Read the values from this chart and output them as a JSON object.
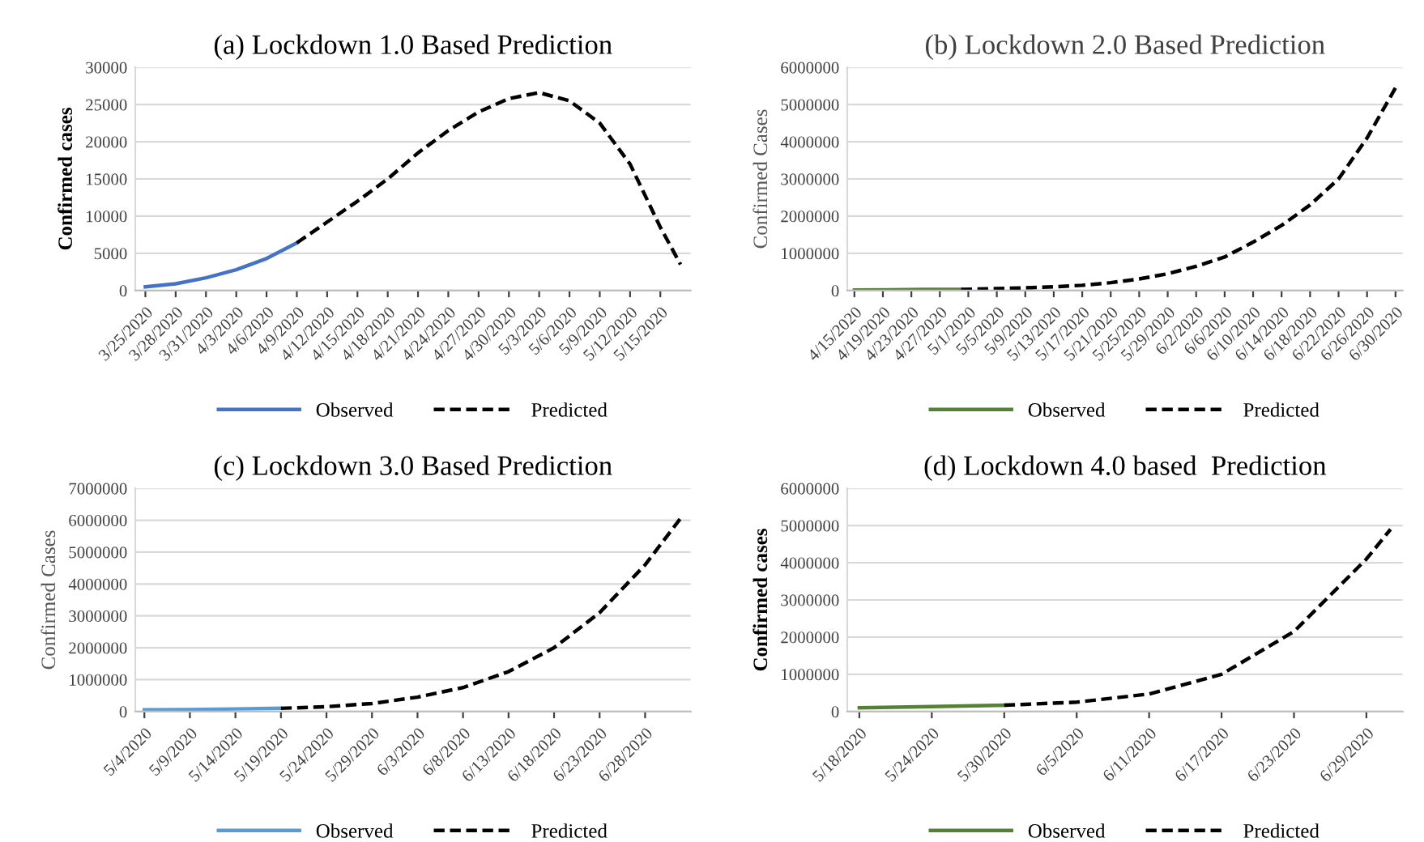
{
  "chart_data": [
    {
      "type": "line",
      "title": "(a) Lockdown 1.0 Based Prediction",
      "ylabel": "Confirmed cases",
      "grid": "y",
      "legend": "bottom",
      "xlim": [
        "2020-03-24",
        "2020-05-18"
      ],
      "ylim": [
        0,
        30000
      ],
      "yticks": [
        0,
        5000,
        10000,
        15000,
        20000,
        25000,
        30000
      ],
      "xticks": [
        {
          "value": "2020-03-25",
          "label": "3/25/2020"
        },
        {
          "value": "2020-03-28",
          "label": "3/28/2020"
        },
        {
          "value": "2020-03-31",
          "label": "3/31/2020"
        },
        {
          "value": "2020-04-03",
          "label": "4/3/2020"
        },
        {
          "value": "2020-04-06",
          "label": "4/6/2020"
        },
        {
          "value": "2020-04-09",
          "label": "4/9/2020"
        },
        {
          "value": "2020-04-12",
          "label": "4/12/2020"
        },
        {
          "value": "2020-04-15",
          "label": "4/15/2020"
        },
        {
          "value": "2020-04-18",
          "label": "4/18/2020"
        },
        {
          "value": "2020-04-21",
          "label": "4/21/2020"
        },
        {
          "value": "2020-04-24",
          "label": "4/24/2020"
        },
        {
          "value": "2020-04-27",
          "label": "4/27/2020"
        },
        {
          "value": "2020-04-30",
          "label": "4/30/2020"
        },
        {
          "value": "2020-05-03",
          "label": "5/3/2020"
        },
        {
          "value": "2020-05-06",
          "label": "5/6/2020"
        },
        {
          "value": "2020-05-09",
          "label": "5/9/2020"
        },
        {
          "value": "2020-05-12",
          "label": "5/12/2020"
        },
        {
          "value": "2020-05-15",
          "label": "5/15/2020"
        }
      ],
      "series": [
        {
          "name": "Observed",
          "color": "#4472c4",
          "line_style": "solid",
          "x": [
            "2020-03-25",
            "2020-03-28",
            "2020-03-31",
            "2020-04-03",
            "2020-04-06",
            "2020-04-09"
          ],
          "values": [
            500,
            900,
            1700,
            2800,
            4300,
            6400
          ]
        },
        {
          "name": "Predicted",
          "color": "#000000",
          "line_style": "dashed",
          "x": [
            "2020-04-09",
            "2020-04-12",
            "2020-04-15",
            "2020-04-18",
            "2020-04-21",
            "2020-04-24",
            "2020-04-27",
            "2020-04-30",
            "2020-05-03",
            "2020-05-06",
            "2020-05-09",
            "2020-05-12",
            "2020-05-15",
            "2020-05-17"
          ],
          "values": [
            6400,
            9200,
            12000,
            15000,
            18500,
            21500,
            24000,
            25800,
            26600,
            25500,
            22500,
            17000,
            8500,
            3500
          ]
        }
      ]
    },
    {
      "type": "line",
      "title": "(b) Lockdown 2.0 Based Prediction",
      "ylabel": "Confirmed Cases",
      "grid": "y",
      "legend": "bottom",
      "xlim": [
        "2020-04-14",
        "2020-07-01"
      ],
      "ylim": [
        0,
        6000000
      ],
      "yticks": [
        0,
        1000000,
        2000000,
        3000000,
        4000000,
        5000000,
        6000000
      ],
      "xticks": [
        {
          "value": "2020-04-15",
          "label": "4/15/2020"
        },
        {
          "value": "2020-04-19",
          "label": "4/19/2020"
        },
        {
          "value": "2020-04-23",
          "label": "4/23/2020"
        },
        {
          "value": "2020-04-27",
          "label": "4/27/2020"
        },
        {
          "value": "2020-05-01",
          "label": "5/1/2020"
        },
        {
          "value": "2020-05-05",
          "label": "5/5/2020"
        },
        {
          "value": "2020-05-09",
          "label": "5/9/2020"
        },
        {
          "value": "2020-05-13",
          "label": "5/13/2020"
        },
        {
          "value": "2020-05-17",
          "label": "5/17/2020"
        },
        {
          "value": "2020-05-21",
          "label": "5/21/2020"
        },
        {
          "value": "2020-05-25",
          "label": "5/25/2020"
        },
        {
          "value": "2020-05-29",
          "label": "5/29/2020"
        },
        {
          "value": "2020-06-02",
          "label": "6/2/2020"
        },
        {
          "value": "2020-06-06",
          "label": "6/6/2020"
        },
        {
          "value": "2020-06-10",
          "label": "6/10/2020"
        },
        {
          "value": "2020-06-14",
          "label": "6/14/2020"
        },
        {
          "value": "2020-06-18",
          "label": "6/18/2020"
        },
        {
          "value": "2020-06-22",
          "label": "6/22/2020"
        },
        {
          "value": "2020-06-26",
          "label": "6/26/2020"
        },
        {
          "value": "2020-06-30",
          "label": "6/30/2020"
        }
      ],
      "series": [
        {
          "name": "Observed",
          "color": "#548235",
          "line_style": "solid",
          "x": [
            "2020-04-15",
            "2020-04-20",
            "2020-04-25",
            "2020-04-30"
          ],
          "values": [
            10000,
            20000,
            30000,
            30000
          ]
        },
        {
          "name": "Predicted",
          "color": "#000000",
          "line_style": "dashed",
          "x": [
            "2020-04-30",
            "2020-05-05",
            "2020-05-09",
            "2020-05-13",
            "2020-05-17",
            "2020-05-21",
            "2020-05-25",
            "2020-05-29",
            "2020-06-02",
            "2020-06-06",
            "2020-06-10",
            "2020-06-14",
            "2020-06-18",
            "2020-06-22",
            "2020-06-26",
            "2020-06-30"
          ],
          "values": [
            30000,
            50000,
            70000,
            100000,
            140000,
            210000,
            310000,
            450000,
            650000,
            900000,
            1300000,
            1750000,
            2300000,
            3000000,
            4100000,
            5450000
          ]
        }
      ]
    },
    {
      "type": "line",
      "title": "(c) Lockdown 3.0 Based Prediction",
      "ylabel": "Confirmed Cases",
      "grid": "y",
      "legend": "bottom",
      "xlim": [
        "2020-05-03",
        "2020-07-03"
      ],
      "ylim": [
        0,
        7000000
      ],
      "yticks": [
        0,
        1000000,
        2000000,
        3000000,
        4000000,
        5000000,
        6000000,
        7000000
      ],
      "xticks": [
        {
          "value": "2020-05-04",
          "label": "5/4/2020"
        },
        {
          "value": "2020-05-09",
          "label": "5/9/2020"
        },
        {
          "value": "2020-05-14",
          "label": "5/14/2020"
        },
        {
          "value": "2020-05-19",
          "label": "5/19/2020"
        },
        {
          "value": "2020-05-24",
          "label": "5/24/2020"
        },
        {
          "value": "2020-05-29",
          "label": "5/29/2020"
        },
        {
          "value": "2020-06-03",
          "label": "6/3/2020"
        },
        {
          "value": "2020-06-08",
          "label": "6/8/2020"
        },
        {
          "value": "2020-06-13",
          "label": "6/13/2020"
        },
        {
          "value": "2020-06-18",
          "label": "6/18/2020"
        },
        {
          "value": "2020-06-23",
          "label": "6/23/2020"
        },
        {
          "value": "2020-06-28",
          "label": "6/28/2020"
        }
      ],
      "series": [
        {
          "name": "Observed",
          "color": "#5b9bd5",
          "line_style": "solid",
          "x": [
            "2020-05-04",
            "2020-05-09",
            "2020-05-14",
            "2020-05-19"
          ],
          "values": [
            50000,
            60000,
            80000,
            100000
          ]
        },
        {
          "name": "Predicted",
          "color": "#000000",
          "line_style": "dashed",
          "x": [
            "2020-05-19",
            "2020-05-24",
            "2020-05-29",
            "2020-06-03",
            "2020-06-08",
            "2020-06-13",
            "2020-06-18",
            "2020-06-23",
            "2020-06-28",
            "2020-07-02"
          ],
          "values": [
            100000,
            150000,
            250000,
            450000,
            750000,
            1250000,
            2000000,
            3100000,
            4600000,
            6100000
          ]
        }
      ]
    },
    {
      "type": "line",
      "title": "(d) Lockdown 4.0 based  Prediction",
      "ylabel": "Confirmed cases",
      "grid": "y",
      "legend": "bottom",
      "xlim": [
        "2020-05-17",
        "2020-07-02"
      ],
      "ylim": [
        0,
        6000000
      ],
      "yticks": [
        0,
        1000000,
        2000000,
        3000000,
        4000000,
        5000000,
        6000000
      ],
      "xticks": [
        {
          "value": "2020-05-18",
          "label": "5/18/2020"
        },
        {
          "value": "2020-05-24",
          "label": "5/24/2020"
        },
        {
          "value": "2020-05-30",
          "label": "5/30/2020"
        },
        {
          "value": "2020-06-05",
          "label": "6/5/2020"
        },
        {
          "value": "2020-06-11",
          "label": "6/11/2020"
        },
        {
          "value": "2020-06-17",
          "label": "6/17/2020"
        },
        {
          "value": "2020-06-23",
          "label": "6/23/2020"
        },
        {
          "value": "2020-06-29",
          "label": "6/29/2020"
        }
      ],
      "series": [
        {
          "name": "Observed",
          "color": "#548235",
          "line_style": "solid",
          "x": [
            "2020-05-18",
            "2020-05-24",
            "2020-05-30"
          ],
          "values": [
            100000,
            130000,
            170000
          ]
        },
        {
          "name": "Predicted",
          "color": "#000000",
          "line_style": "dashed",
          "x": [
            "2020-05-30",
            "2020-06-05",
            "2020-06-11",
            "2020-06-17",
            "2020-06-23",
            "2020-06-29",
            "2020-07-01"
          ],
          "values": [
            170000,
            250000,
            470000,
            1000000,
            2150000,
            4100000,
            4900000
          ]
        }
      ]
    }
  ]
}
